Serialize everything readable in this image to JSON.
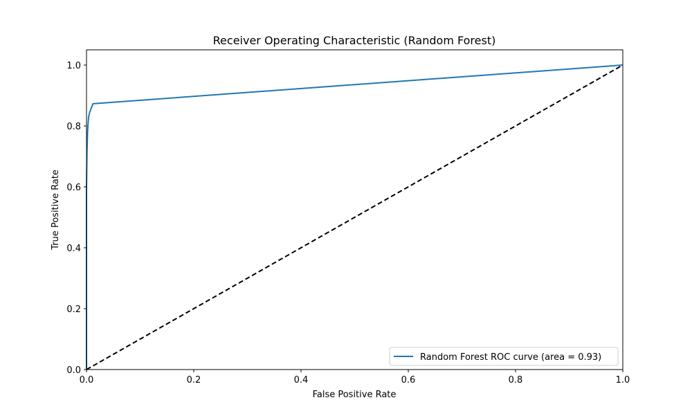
{
  "chart_data": {
    "type": "line",
    "title": "Receiver Operating Characteristic (Random Forest)",
    "xlabel": "False Positive Rate",
    "ylabel": "True Positive Rate",
    "xlim": [
      0,
      1
    ],
    "ylim": [
      0,
      1.05
    ],
    "x_ticks": [
      0,
      0.2,
      0.4,
      0.6,
      0.8,
      1.0
    ],
    "x_tick_labels": [
      "0.0",
      "0.2",
      "0.4",
      "0.6",
      "0.8",
      "1.0"
    ],
    "y_ticks": [
      0,
      0.2,
      0.4,
      0.6,
      0.8,
      1.0
    ],
    "y_tick_labels": [
      "0.0",
      "0.2",
      "0.4",
      "0.6",
      "0.8",
      "1.0"
    ],
    "grid": false,
    "legend_position": "lower-right",
    "series": [
      {
        "name": "Random Forest ROC curve (area = 0.93)",
        "color": "#1f77b4",
        "line_style": "solid",
        "x": [
          0.0,
          0.0,
          0.001,
          0.002,
          0.003,
          0.004,
          0.006,
          0.012,
          1.0
        ],
        "y": [
          0.0,
          0.6,
          0.72,
          0.78,
          0.81,
          0.83,
          0.845,
          0.873,
          1.0
        ]
      },
      {
        "name": "",
        "color": "#000000",
        "line_style": "dashed",
        "x": [
          0.0,
          1.0
        ],
        "y": [
          0.0,
          1.0
        ]
      }
    ]
  }
}
